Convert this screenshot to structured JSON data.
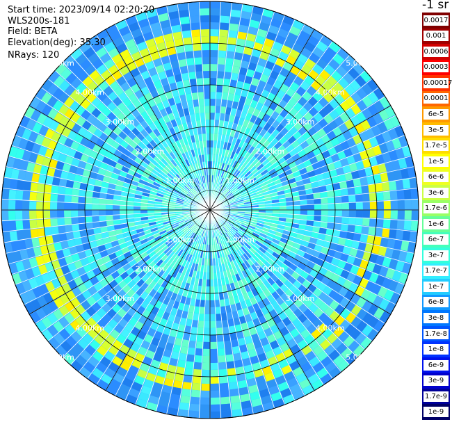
{
  "header": {
    "start_time": "Start time: 2023/09/14 02:20:20",
    "instrument": "WLS200s-181",
    "field": "Field: BETA",
    "elevation": "Elevation(deg): 35.30",
    "nrays": "NRays: 120"
  },
  "plot": {
    "range_labels": [
      "1.00km",
      "2.00km",
      "3.00km",
      "4.00km",
      "5.00km"
    ],
    "palette": {
      "background_cyan": "#33ffee",
      "mid_blue": "#3399ff",
      "yellow_band": "#e8ff1a",
      "grid": "#000000"
    }
  },
  "colorbar": {
    "title": "-1 sr",
    "levels": [
      {
        "label": "0.0017",
        "color": "#800000"
      },
      {
        "label": "0.001",
        "color": "#a00000"
      },
      {
        "label": "0.0006",
        "color": "#d00000"
      },
      {
        "label": "0.0003",
        "color": "#ff0000"
      },
      {
        "label": "0.00017",
        "color": "#ff3300"
      },
      {
        "label": "0.0001",
        "color": "#ff6600"
      },
      {
        "label": "6e-5",
        "color": "#ff9900"
      },
      {
        "label": "3e-5",
        "color": "#ffbb00"
      },
      {
        "label": "1.7e-5",
        "color": "#ffdd00"
      },
      {
        "label": "1e-5",
        "color": "#ffff00"
      },
      {
        "label": "6e-6",
        "color": "#eeff22"
      },
      {
        "label": "3e-6",
        "color": "#ccff44"
      },
      {
        "label": "1.7e-6",
        "color": "#99ff66"
      },
      {
        "label": "1e-6",
        "color": "#66ff99"
      },
      {
        "label": "6e-7",
        "color": "#44ffbb"
      },
      {
        "label": "3e-7",
        "color": "#33ffdd"
      },
      {
        "label": "1.7e-7",
        "color": "#33eeff"
      },
      {
        "label": "1e-7",
        "color": "#22ccff"
      },
      {
        "label": "6e-8",
        "color": "#1199ff"
      },
      {
        "label": "3e-8",
        "color": "#0077ff"
      },
      {
        "label": "1.7e-8",
        "color": "#0055ff"
      },
      {
        "label": "1e-8",
        "color": "#0033ff"
      },
      {
        "label": "6e-9",
        "color": "#0011ee"
      },
      {
        "label": "3e-9",
        "color": "#0000cc"
      },
      {
        "label": "1.7e-9",
        "color": "#000099"
      },
      {
        "label": "1e-9",
        "color": "#000066"
      }
    ]
  }
}
